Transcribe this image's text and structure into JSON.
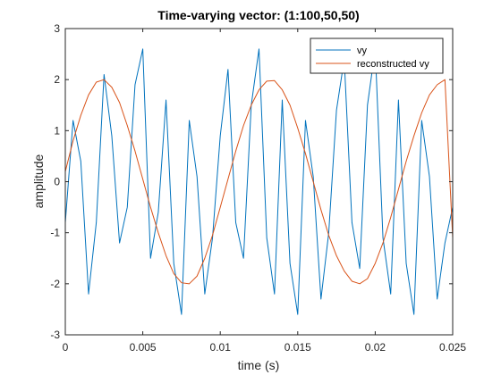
{
  "chart_data": {
    "type": "line",
    "title": "Time-varying vector: (1:100,50,50)",
    "xlabel": "time (s)",
    "ylabel": "amplitude",
    "xlim": [
      0,
      0.025
    ],
    "ylim": [
      -3,
      3
    ],
    "xticks": [
      0,
      0.005,
      0.01,
      0.015,
      0.02,
      0.025
    ],
    "xtick_labels": [
      "0",
      "0.005",
      "0.01",
      "0.015",
      "0.02",
      "0.025"
    ],
    "yticks": [
      -3,
      -2,
      -1,
      0,
      1,
      2,
      3
    ],
    "ytick_labels": [
      "-3",
      "-2",
      "-1",
      "0",
      "1",
      "2",
      "3"
    ],
    "grid": false,
    "legend_position": "top-right",
    "x": [
      0,
      0.0005,
      0.001,
      0.0015,
      0.002,
      0.0025,
      0.003,
      0.0035,
      0.004,
      0.0045,
      0.005,
      0.0055,
      0.006,
      0.0065,
      0.007,
      0.0075,
      0.008,
      0.0085,
      0.009,
      0.0095,
      0.01,
      0.0105,
      0.011,
      0.0115,
      0.012,
      0.0125,
      0.013,
      0.0135,
      0.014,
      0.0145,
      0.015,
      0.0155,
      0.016,
      0.0165,
      0.017,
      0.0175,
      0.018,
      0.0185,
      0.019,
      0.0195,
      0.02,
      0.0205,
      0.021,
      0.0215,
      0.022,
      0.0225,
      0.023,
      0.0235,
      0.024,
      0.0245,
      0.025
    ],
    "series": [
      {
        "name": "vy",
        "color": "#0072BD",
        "values": [
          -0.8,
          1.2,
          0.4,
          -2.2,
          -0.8,
          2.1,
          0.9,
          -1.2,
          -0.5,
          1.9,
          2.6,
          -1.5,
          -0.6,
          1.6,
          -1.6,
          -2.6,
          1.2,
          0.1,
          -2.2,
          -1.1,
          0.9,
          2.2,
          -0.8,
          -1.5,
          1.5,
          2.6,
          -1.1,
          -2.2,
          1.6,
          -1.6,
          -2.6,
          1.2,
          0.1,
          -2.3,
          -1.0,
          1.4,
          2.4,
          -0.8,
          -1.7,
          1.5,
          2.6,
          -1.1,
          -2.2,
          1.6,
          -1.6,
          -2.6,
          1.2,
          0.1,
          -2.3,
          -1.2,
          -0.5
        ]
      },
      {
        "name": "reconstructed vy",
        "color": "#D95319",
        "values": [
          0.2,
          0.8,
          1.3,
          1.7,
          1.95,
          2.0,
          1.85,
          1.55,
          1.1,
          0.6,
          0.05,
          -0.5,
          -1.0,
          -1.45,
          -1.8,
          -1.98,
          -2.0,
          -1.85,
          -1.5,
          -1.05,
          -0.5,
          0.05,
          0.6,
          1.1,
          1.5,
          1.8,
          1.97,
          1.98,
          1.8,
          1.5,
          1.05,
          0.55,
          0.0,
          -0.55,
          -1.05,
          -1.45,
          -1.75,
          -1.95,
          -2.0,
          -1.9,
          -1.6,
          -1.2,
          -0.7,
          -0.15,
          0.4,
          0.9,
          1.35,
          1.7,
          1.9,
          2.0,
          -1.1
        ]
      }
    ]
  }
}
